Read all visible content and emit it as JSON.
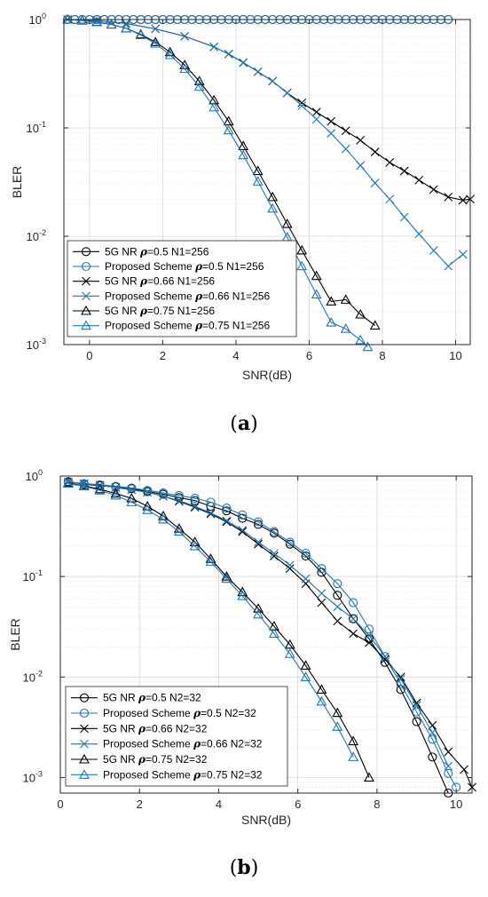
{
  "colors": {
    "black": "#000000",
    "blue": "#1f77b4",
    "grid": "#e3e3e3",
    "axis": "#262626"
  },
  "chart_data": [
    {
      "type": "line",
      "caption": "(a)",
      "xlabel": "SNR(dB)",
      "ylabel": "BLER",
      "xlim": [
        -0.7,
        10.4
      ],
      "ylim": [
        0.001,
        1
      ],
      "yscale": "log",
      "grid": true,
      "legend_position": "bottom-left",
      "xticks": [
        0,
        2,
        4,
        6,
        8,
        10
      ],
      "yticks": [
        {
          "value": 1,
          "base": "10",
          "exp": "0"
        },
        {
          "value": 0.1,
          "base": "10",
          "exp": "-1"
        },
        {
          "value": 0.01,
          "base": "10",
          "exp": "-2"
        },
        {
          "value": 0.001,
          "base": "10",
          "exp": "-3"
        }
      ],
      "series": [
        {
          "name": "5G NR ρ=0.5 N1=256",
          "color": "#000000",
          "marker": "circle",
          "x": [
            -0.6,
            -0.4,
            -0.2,
            0.0,
            0.2,
            0.4,
            0.6,
            0.8,
            1.0,
            1.2,
            1.4,
            1.6,
            1.8,
            2.0,
            2.2,
            2.4,
            2.6,
            2.8,
            3.0,
            3.2,
            3.4,
            3.6,
            3.8,
            4.0,
            4.2,
            4.4,
            4.6,
            4.8,
            5.0,
            5.2,
            5.4,
            5.6,
            5.8,
            6.0,
            6.2,
            6.4,
            6.6,
            6.8,
            7.0,
            7.2,
            7.4,
            7.6,
            7.8,
            8.0,
            8.2,
            8.4,
            8.6,
            8.8,
            9.0,
            9.2,
            9.4,
            9.6,
            9.8
          ],
          "y": [
            1,
            1,
            1,
            1,
            1,
            1,
            1,
            1,
            1,
            1,
            1,
            1,
            1,
            1,
            1,
            1,
            1,
            1,
            1,
            1,
            1,
            1,
            1,
            1,
            1,
            1,
            1,
            1,
            1,
            1,
            1,
            1,
            1,
            1,
            1,
            1,
            1,
            1,
            1,
            1,
            1,
            1,
            1,
            1,
            1,
            1,
            1,
            1,
            1,
            1,
            1,
            1,
            1
          ]
        },
        {
          "name": "Proposed Scheme ρ=0.5 N1=256",
          "color": "#1f77b4",
          "marker": "circle",
          "x": [
            -0.6,
            -0.4,
            -0.2,
            0.0,
            0.2,
            0.4,
            0.6,
            0.8,
            1.0,
            1.2,
            1.4,
            1.6,
            1.8,
            2.0,
            2.2,
            2.4,
            2.6,
            2.8,
            3.0,
            3.2,
            3.4,
            3.6,
            3.8,
            4.0,
            4.2,
            4.4,
            4.6,
            4.8,
            5.0,
            5.2,
            5.4,
            5.6,
            5.8,
            6.0,
            6.2,
            6.4,
            6.6,
            6.8,
            7.0,
            7.2,
            7.4,
            7.6,
            7.8,
            8.0,
            8.2,
            8.4,
            8.6,
            8.8,
            9.0,
            9.2,
            9.4,
            9.6,
            9.8
          ],
          "y": [
            1,
            1,
            1,
            1,
            1,
            1,
            1,
            1,
            1,
            1,
            1,
            1,
            1,
            1,
            1,
            1,
            1,
            1,
            1,
            1,
            1,
            1,
            1,
            1,
            1,
            1,
            1,
            1,
            1,
            1,
            1,
            1,
            1,
            1,
            1,
            1,
            1,
            1,
            1,
            1,
            1,
            1,
            1,
            1,
            1,
            1,
            1,
            1,
            1,
            1,
            1,
            1,
            1
          ]
        },
        {
          "name": "5G NR ρ=0.66 N1=256",
          "color": "#000000",
          "marker": "x",
          "x": [
            -0.6,
            0.2,
            1.0,
            1.8,
            2.6,
            3.4,
            3.8,
            4.2,
            4.6,
            5.0,
            5.4,
            5.8,
            6.2,
            6.6,
            7.0,
            7.4,
            7.8,
            8.2,
            8.6,
            9.0,
            9.4,
            9.8,
            10.2,
            10.4
          ],
          "y": [
            1,
            0.98,
            0.92,
            0.82,
            0.7,
            0.56,
            0.48,
            0.4,
            0.33,
            0.27,
            0.21,
            0.17,
            0.14,
            0.115,
            0.094,
            0.077,
            0.06,
            0.048,
            0.04,
            0.033,
            0.027,
            0.023,
            0.0215,
            0.022
          ]
        },
        {
          "name": "Proposed Scheme ρ=0.66 N1=256",
          "color": "#1f77b4",
          "marker": "x",
          "x": [
            -0.6,
            0.2,
            1.0,
            1.8,
            2.6,
            3.4,
            3.8,
            4.2,
            4.6,
            5.0,
            5.4,
            5.8,
            6.2,
            6.6,
            7.0,
            7.4,
            7.8,
            8.2,
            8.6,
            9.0,
            9.4,
            9.8,
            10.2
          ],
          "y": [
            1,
            0.98,
            0.92,
            0.82,
            0.7,
            0.56,
            0.48,
            0.4,
            0.33,
            0.27,
            0.21,
            0.16,
            0.12,
            0.089,
            0.064,
            0.045,
            0.031,
            0.022,
            0.015,
            0.0105,
            0.0074,
            0.0053,
            0.0068
          ]
        },
        {
          "name": "5G NR ρ=0.75 N1=256",
          "color": "#000000",
          "marker": "triangle",
          "x": [
            -0.6,
            -0.2,
            0.2,
            0.6,
            1.0,
            1.4,
            1.8,
            2.2,
            2.6,
            3.0,
            3.4,
            3.8,
            4.2,
            4.6,
            5.0,
            5.4,
            5.8,
            6.2,
            6.6,
            7.0,
            7.4,
            7.8
          ],
          "y": [
            1,
            0.98,
            0.95,
            0.9,
            0.83,
            0.73,
            0.62,
            0.5,
            0.38,
            0.27,
            0.18,
            0.115,
            0.068,
            0.04,
            0.023,
            0.013,
            0.0074,
            0.0043,
            0.0025,
            0.0026,
            0.0019,
            0.0015
          ]
        },
        {
          "name": "Proposed Scheme ρ=0.75 N1=256",
          "color": "#1f77b4",
          "marker": "triangle",
          "x": [
            -0.6,
            -0.2,
            0.2,
            0.6,
            1.0,
            1.4,
            1.8,
            2.2,
            2.6,
            3.0,
            3.4,
            3.8,
            4.2,
            4.6,
            5.0,
            5.4,
            5.8,
            6.2,
            6.6,
            7.0,
            7.4,
            7.6
          ],
          "y": [
            1,
            0.98,
            0.95,
            0.9,
            0.83,
            0.72,
            0.6,
            0.47,
            0.35,
            0.24,
            0.155,
            0.095,
            0.056,
            0.032,
            0.018,
            0.0098,
            0.0053,
            0.0029,
            0.0016,
            0.0014,
            0.0011,
            0.00095
          ]
        }
      ]
    },
    {
      "type": "line",
      "caption": "(b)",
      "xlabel": "SNR(dB)",
      "ylabel": "BLER",
      "xlim": [
        0,
        10.4
      ],
      "ylim": [
        0.0007,
        1
      ],
      "yscale": "log",
      "grid": true,
      "legend_position": "bottom-left",
      "xticks": [
        0,
        2,
        4,
        6,
        8,
        10
      ],
      "yticks": [
        {
          "value": 1,
          "base": "10",
          "exp": "0"
        },
        {
          "value": 0.1,
          "base": "10",
          "exp": "-1"
        },
        {
          "value": 0.01,
          "base": "10",
          "exp": "-2"
        },
        {
          "value": 0.001,
          "base": "10",
          "exp": "-3"
        }
      ],
      "series": [
        {
          "name": "5G NR ρ=0.5 N2=32",
          "color": "#000000",
          "marker": "circle",
          "x": [
            0.2,
            0.6,
            1.0,
            1.4,
            1.8,
            2.2,
            2.6,
            3.0,
            3.4,
            3.8,
            4.2,
            4.6,
            5.0,
            5.4,
            5.8,
            6.2,
            6.6,
            7.0,
            7.4,
            7.8,
            8.2,
            8.6,
            9.0,
            9.4,
            9.8
          ],
          "y": [
            0.88,
            0.83,
            0.8,
            0.78,
            0.75,
            0.7,
            0.66,
            0.61,
            0.57,
            0.5,
            0.45,
            0.38,
            0.33,
            0.27,
            0.21,
            0.16,
            0.11,
            0.065,
            0.038,
            0.024,
            0.014,
            0.0075,
            0.0036,
            0.0016,
            0.0007
          ]
        },
        {
          "name": "Proposed Scheme ρ=0.5 N2=32",
          "color": "#1f77b4",
          "marker": "circle",
          "x": [
            0.2,
            0.6,
            1.0,
            1.4,
            1.8,
            2.2,
            2.6,
            3.0,
            3.4,
            3.8,
            4.2,
            4.6,
            5.0,
            5.4,
            5.8,
            6.2,
            6.6,
            7.0,
            7.4,
            7.8,
            8.2,
            8.6,
            9.0,
            9.4,
            9.8,
            10.0
          ],
          "y": [
            0.86,
            0.84,
            0.82,
            0.79,
            0.76,
            0.72,
            0.68,
            0.64,
            0.6,
            0.55,
            0.48,
            0.41,
            0.35,
            0.28,
            0.22,
            0.17,
            0.12,
            0.085,
            0.055,
            0.03,
            0.016,
            0.0085,
            0.0045,
            0.0024,
            0.0011,
            0.0008
          ]
        },
        {
          "name": "5G NR ρ=0.66 N2=32",
          "color": "#000000",
          "marker": "x",
          "x": [
            0.2,
            0.6,
            1.0,
            1.4,
            1.8,
            2.2,
            2.6,
            3.0,
            3.4,
            3.8,
            4.2,
            4.6,
            5.0,
            5.4,
            5.8,
            6.2,
            6.6,
            7.0,
            7.4,
            7.8,
            8.2,
            8.6,
            9.0,
            9.4,
            9.8,
            10.2,
            10.4
          ],
          "y": [
            0.87,
            0.84,
            0.81,
            0.77,
            0.73,
            0.69,
            0.63,
            0.56,
            0.49,
            0.42,
            0.35,
            0.28,
            0.21,
            0.16,
            0.12,
            0.085,
            0.055,
            0.036,
            0.027,
            0.022,
            0.015,
            0.01,
            0.0055,
            0.0033,
            0.0018,
            0.0012,
            0.0008
          ]
        },
        {
          "name": "Proposed Scheme ρ=0.66 N2=32",
          "color": "#1f77b4",
          "marker": "x",
          "x": [
            0.2,
            0.6,
            1.0,
            1.4,
            1.8,
            2.2,
            2.6,
            3.0,
            3.4,
            3.8,
            4.2,
            4.6,
            5.0,
            5.4,
            5.8,
            6.2,
            6.6,
            7.0,
            7.4,
            7.8,
            8.2,
            8.6,
            9.0,
            9.4,
            9.8
          ],
          "y": [
            0.87,
            0.84,
            0.81,
            0.77,
            0.73,
            0.69,
            0.63,
            0.57,
            0.5,
            0.43,
            0.36,
            0.29,
            0.22,
            0.17,
            0.13,
            0.095,
            0.068,
            0.05,
            0.038,
            0.026,
            0.016,
            0.0095,
            0.0052,
            0.0028,
            0.0013
          ]
        },
        {
          "name": "5G NR ρ=0.75 N2=32",
          "color": "#000000",
          "marker": "triangle",
          "x": [
            0.2,
            0.6,
            1.0,
            1.4,
            1.8,
            2.2,
            2.6,
            3.0,
            3.4,
            3.8,
            4.2,
            4.6,
            5.0,
            5.4,
            5.8,
            6.2,
            6.6,
            7.0,
            7.4,
            7.8
          ],
          "y": [
            0.85,
            0.8,
            0.74,
            0.67,
            0.6,
            0.5,
            0.4,
            0.3,
            0.22,
            0.15,
            0.1,
            0.07,
            0.048,
            0.032,
            0.021,
            0.013,
            0.0075,
            0.0044,
            0.0023,
            0.001
          ]
        },
        {
          "name": "Proposed Scheme ρ=0.75 N2=32",
          "color": "#1f77b4",
          "marker": "triangle",
          "x": [
            0.2,
            0.6,
            1.0,
            1.4,
            1.8,
            2.2,
            2.6,
            3.0,
            3.4,
            3.8,
            4.2,
            4.6,
            5.0,
            5.4,
            5.8,
            6.2,
            6.6,
            7.0,
            7.4
          ],
          "y": [
            0.84,
            0.79,
            0.72,
            0.64,
            0.55,
            0.46,
            0.37,
            0.28,
            0.2,
            0.14,
            0.095,
            0.064,
            0.042,
            0.027,
            0.017,
            0.01,
            0.0057,
            0.0032,
            0.0016
          ]
        }
      ]
    }
  ]
}
